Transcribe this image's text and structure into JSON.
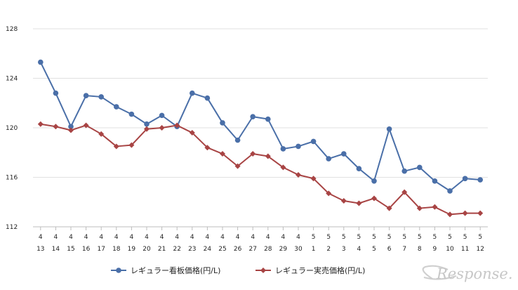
{
  "chart_data": {
    "type": "line",
    "title": "",
    "xlabel": "",
    "ylabel": "",
    "ylim": [
      112,
      128
    ],
    "yticks": [
      112,
      116,
      120,
      124,
      128
    ],
    "grid": "horizontal",
    "legend": "bottom-center",
    "categories": [
      {
        "m": "4",
        "d": "13"
      },
      {
        "m": "4",
        "d": "14"
      },
      {
        "m": "4",
        "d": "15"
      },
      {
        "m": "4",
        "d": "16"
      },
      {
        "m": "4",
        "d": "17"
      },
      {
        "m": "4",
        "d": "18"
      },
      {
        "m": "4",
        "d": "19"
      },
      {
        "m": "4",
        "d": "20"
      },
      {
        "m": "4",
        "d": "21"
      },
      {
        "m": "4",
        "d": "22"
      },
      {
        "m": "4",
        "d": "23"
      },
      {
        "m": "4",
        "d": "24"
      },
      {
        "m": "4",
        "d": "25"
      },
      {
        "m": "4",
        "d": "26"
      },
      {
        "m": "4",
        "d": "27"
      },
      {
        "m": "4",
        "d": "28"
      },
      {
        "m": "4",
        "d": "29"
      },
      {
        "m": "4",
        "d": "30"
      },
      {
        "m": "5",
        "d": "1"
      },
      {
        "m": "5",
        "d": "2"
      },
      {
        "m": "5",
        "d": "3"
      },
      {
        "m": "5",
        "d": "4"
      },
      {
        "m": "5",
        "d": "5"
      },
      {
        "m": "5",
        "d": "6"
      },
      {
        "m": "5",
        "d": "7"
      },
      {
        "m": "5",
        "d": "8"
      },
      {
        "m": "5",
        "d": "9"
      },
      {
        "m": "5",
        "d": "10"
      },
      {
        "m": "5",
        "d": "11"
      },
      {
        "m": "5",
        "d": "12"
      }
    ],
    "series": [
      {
        "name": "レギュラー看板価格(円/L)",
        "color": "#4a6fa8",
        "marker": "circle",
        "values": [
          125.3,
          122.8,
          120.1,
          122.6,
          122.5,
          121.7,
          121.1,
          120.3,
          121.0,
          120.1,
          122.8,
          122.4,
          120.4,
          119.0,
          120.9,
          120.7,
          118.3,
          118.5,
          118.9,
          117.5,
          117.9,
          116.7,
          115.7,
          119.9,
          116.5,
          116.8,
          115.7,
          114.9,
          115.9,
          115.8
        ]
      },
      {
        "name": "レギュラー実売価格(円/L)",
        "color": "#a84444",
        "marker": "diamond",
        "values": [
          120.3,
          120.1,
          119.8,
          120.2,
          119.5,
          118.5,
          118.6,
          119.9,
          120.0,
          120.2,
          119.6,
          118.4,
          117.9,
          116.9,
          117.9,
          117.7,
          116.8,
          116.2,
          115.9,
          114.7,
          114.1,
          113.9,
          114.3,
          113.5,
          114.8,
          113.5,
          113.6,
          113.0,
          113.1,
          113.1
        ]
      }
    ]
  },
  "watermark": {
    "text": "Response."
  }
}
